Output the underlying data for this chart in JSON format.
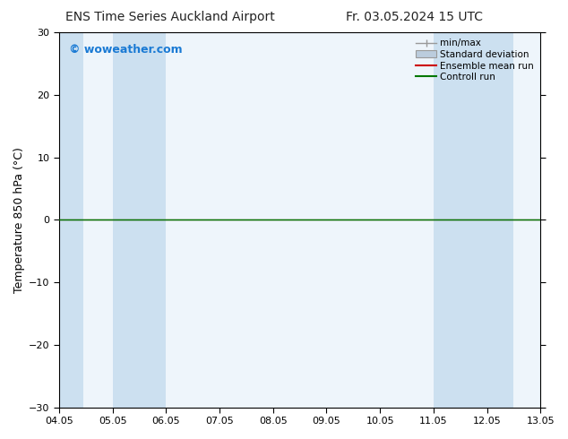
{
  "title_left": "ENS Time Series Auckland Airport",
  "title_right": "Fr. 03.05.2024 15 UTC",
  "ylabel": "Temperature 850 hPa (°C)",
  "watermark": "© woweather.com",
  "watermark_color": "#1a7ad4",
  "ylim": [
    -30,
    30
  ],
  "yticks": [
    -30,
    -20,
    -10,
    0,
    10,
    20,
    30
  ],
  "xtick_labels": [
    "04.05",
    "05.05",
    "06.05",
    "07.05",
    "08.05",
    "09.05",
    "10.05",
    "11.05",
    "12.05",
    "13.05"
  ],
  "n_xticks": 10,
  "xlim": [
    0,
    9
  ],
  "bg_color": "#ffffff",
  "plot_bg_color": "#eef5fb",
  "shaded_col_color": "#cce0f0",
  "shaded_columns": [
    [
      0,
      0.45
    ],
    [
      1.0,
      2.0
    ],
    [
      7.0,
      8.5
    ],
    [
      9.0,
      9.5
    ]
  ],
  "zero_line_color": "#000000",
  "control_run_color": "#007700",
  "ensemble_mean_color": "#cc0000",
  "legend_labels": [
    "min/max",
    "Standard deviation",
    "Ensemble mean run",
    "Controll run"
  ],
  "minmax_color": "#999999",
  "std_dev_color": "#bbccdd",
  "title_fontsize": 10,
  "axis_fontsize": 9,
  "tick_fontsize": 8,
  "watermark_fontsize": 9
}
